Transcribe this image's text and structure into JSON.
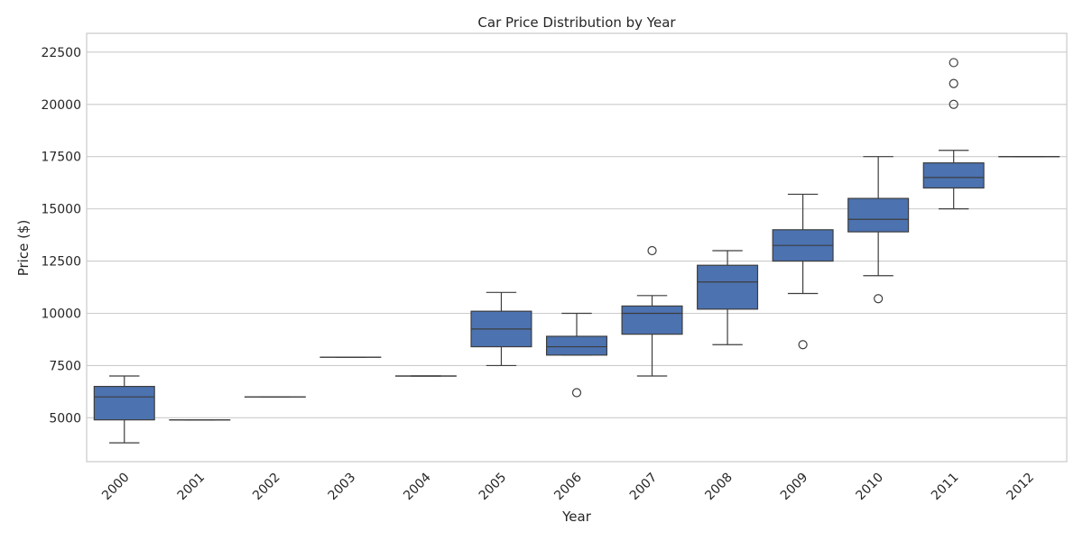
{
  "chart_data": {
    "type": "box",
    "title": "Car Price Distribution by Year",
    "xlabel": "Year",
    "ylabel": "Price ($)",
    "categories": [
      "2000",
      "2001",
      "2002",
      "2003",
      "2004",
      "2005",
      "2006",
      "2007",
      "2008",
      "2009",
      "2010",
      "2011",
      "2012"
    ],
    "ylim": [
      2900,
      23400
    ],
    "yticks": [
      5000,
      7500,
      10000,
      12500,
      15000,
      17500,
      20000,
      22500
    ],
    "grid": true,
    "box_color": "#4c72b0",
    "line_color": "#3d3d3d",
    "boxes": [
      {
        "category": "2000",
        "whisker_low": 3800,
        "q1": 4900,
        "median": 6000,
        "q3": 6500,
        "whisker_high": 7000,
        "outliers": []
      },
      {
        "category": "2001",
        "whisker_low": 4900,
        "q1": 4900,
        "median": 4900,
        "q3": 4900,
        "whisker_high": 4900,
        "outliers": []
      },
      {
        "category": "2002",
        "whisker_low": 6000,
        "q1": 6000,
        "median": 6000,
        "q3": 6000,
        "whisker_high": 6000,
        "outliers": []
      },
      {
        "category": "2003",
        "whisker_low": 7900,
        "q1": 7900,
        "median": 7900,
        "q3": 7900,
        "whisker_high": 7900,
        "outliers": []
      },
      {
        "category": "2004",
        "whisker_low": 7000,
        "q1": 7000,
        "median": 7000,
        "q3": 7000,
        "whisker_high": 7000,
        "outliers": []
      },
      {
        "category": "2005",
        "whisker_low": 7500,
        "q1": 8400,
        "median": 9250,
        "q3": 10100,
        "whisker_high": 11000,
        "outliers": []
      },
      {
        "category": "2006",
        "whisker_low": 8000,
        "q1": 8000,
        "median": 8400,
        "q3": 8900,
        "whisker_high": 10000,
        "outliers": [
          6200
        ]
      },
      {
        "category": "2007",
        "whisker_low": 7000,
        "q1": 9000,
        "median": 10000,
        "q3": 10350,
        "whisker_high": 10850,
        "outliers": [
          13000
        ]
      },
      {
        "category": "2008",
        "whisker_low": 8500,
        "q1": 10200,
        "median": 11500,
        "q3": 12300,
        "whisker_high": 13000,
        "outliers": []
      },
      {
        "category": "2009",
        "whisker_low": 10950,
        "q1": 12500,
        "median": 13250,
        "q3": 14000,
        "whisker_high": 15700,
        "outliers": [
          8500
        ]
      },
      {
        "category": "2010",
        "whisker_low": 11800,
        "q1": 13900,
        "median": 14500,
        "q3": 15500,
        "whisker_high": 17500,
        "outliers": [
          10700
        ]
      },
      {
        "category": "2011",
        "whisker_low": 15000,
        "q1": 16000,
        "median": 16500,
        "q3": 17200,
        "whisker_high": 17800,
        "outliers": [
          20000,
          21000,
          22000
        ]
      },
      {
        "category": "2012",
        "whisker_low": 17500,
        "q1": 17500,
        "median": 17500,
        "q3": 17500,
        "whisker_high": 17500,
        "outliers": []
      }
    ]
  }
}
